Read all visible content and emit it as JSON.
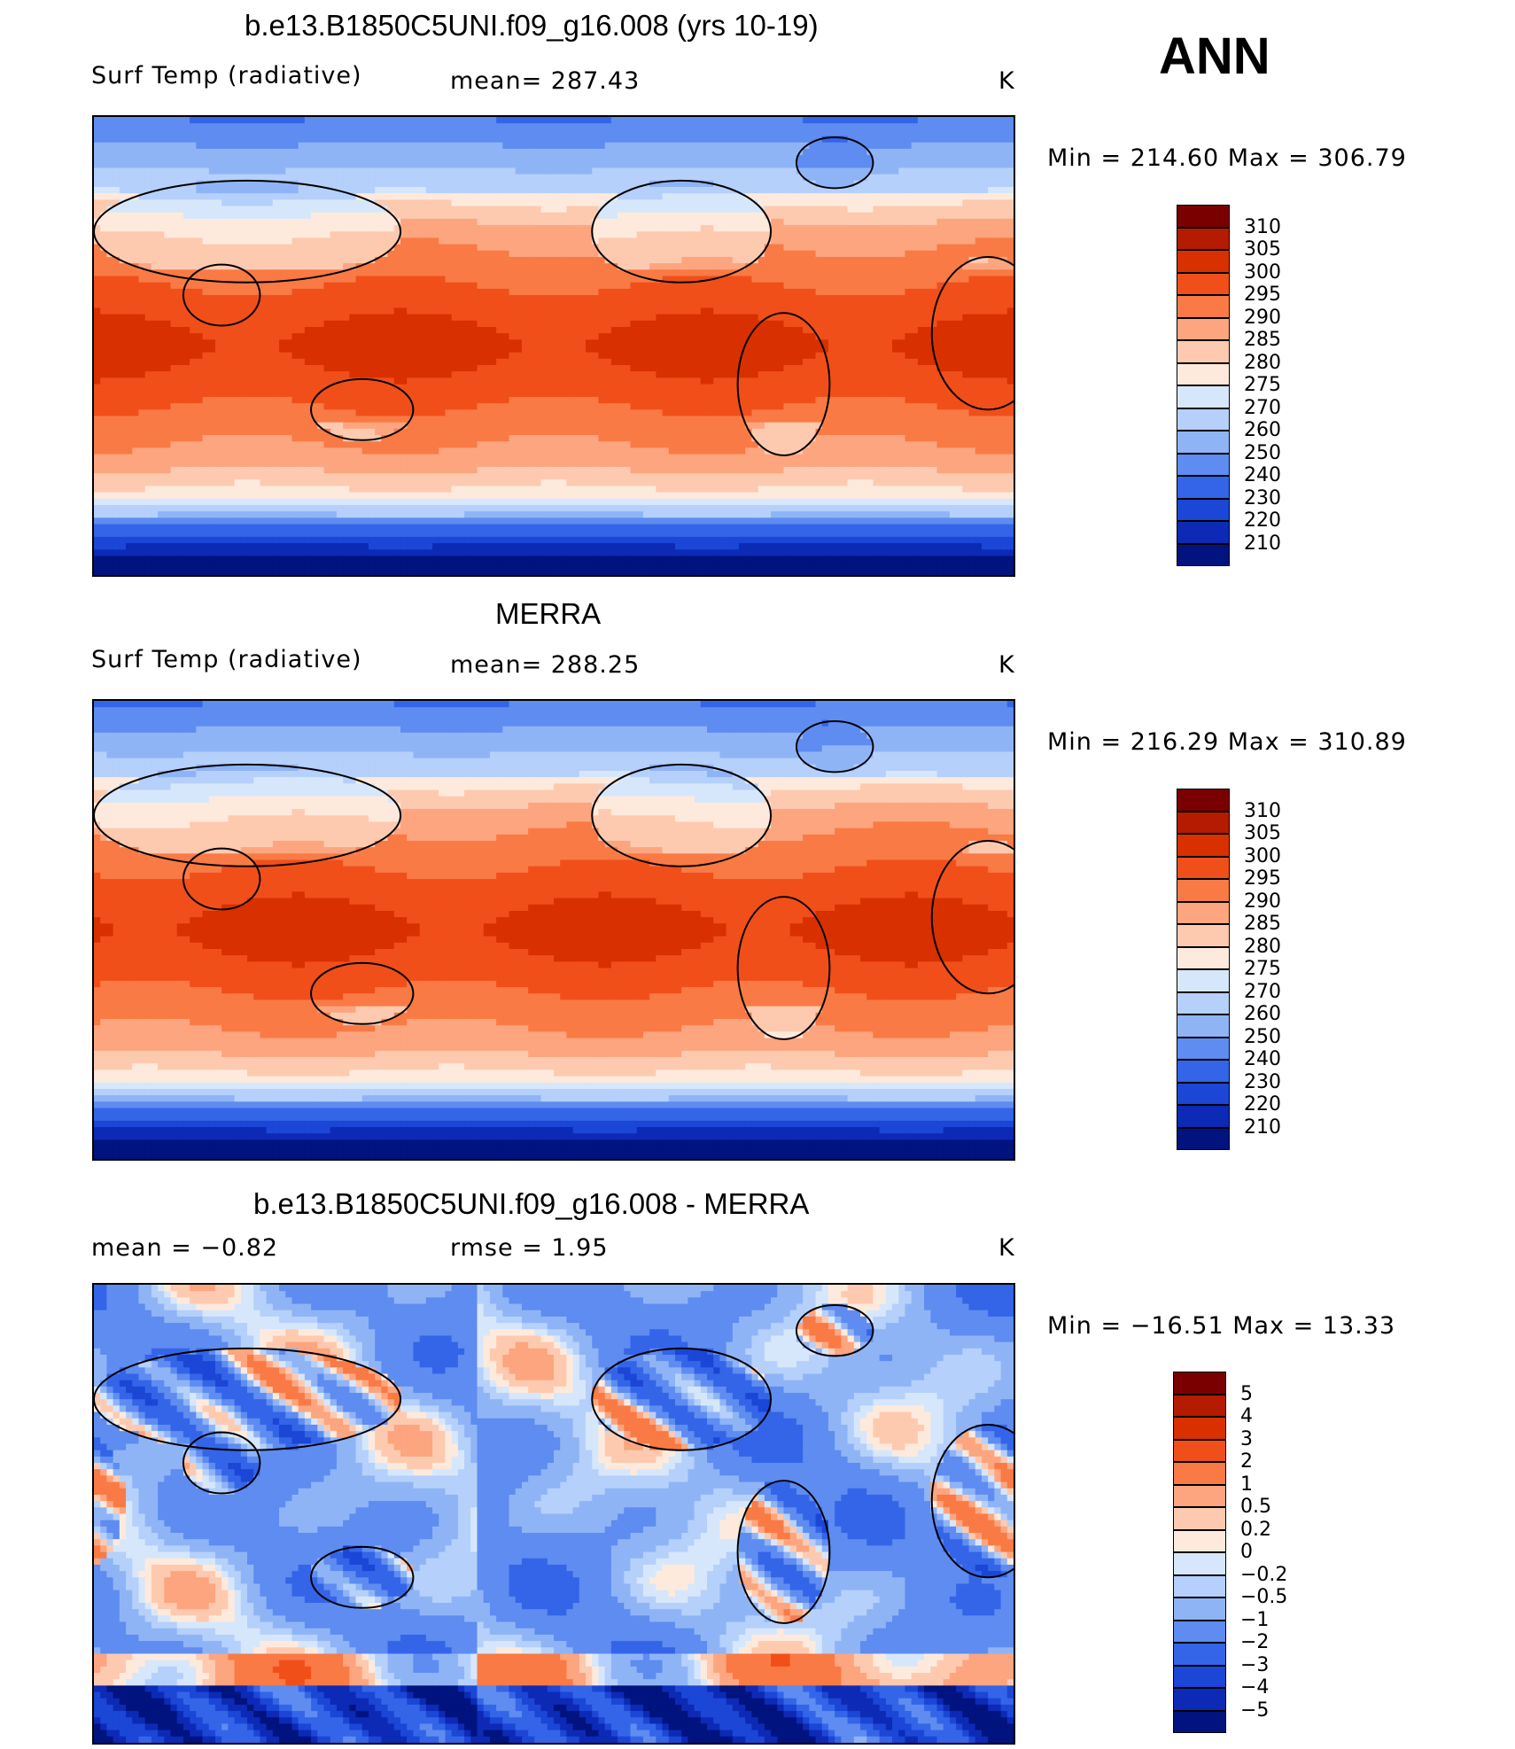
{
  "season": "ANN",
  "units": "K",
  "panels": [
    {
      "title": "b.e13.B1850C5UNI.f09_g16.008 (yrs 10-19)",
      "left_label": "Surf Temp (radiative)",
      "mid_label": "mean=  287.43",
      "minmax": "Min  =  214.60  Max  =  306.79",
      "palette": "abs"
    },
    {
      "title": "MERRA",
      "left_label": "Surf Temp (radiative)",
      "mid_label": "mean=  288.25",
      "minmax": "Min  =  216.29  Max  =  310.89",
      "palette": "abs"
    },
    {
      "title": "b.e13.B1850C5UNI.f09_g16.008 - MERRA",
      "left_label": "mean  =    −0.82",
      "mid_label": "rmse  =     1.95",
      "minmax": "Min  =  −16.51  Max  =    13.33",
      "palette": "diff"
    }
  ],
  "colorbars": {
    "abs": {
      "labels": [
        "310",
        "305",
        "300",
        "295",
        "290",
        "285",
        "280",
        "275",
        "270",
        "260",
        "250",
        "240",
        "230",
        "220",
        "210"
      ],
      "colors": [
        "#7a0000",
        "#b51b00",
        "#d93000",
        "#f14f1a",
        "#f97a45",
        "#fca57f",
        "#fdcab0",
        "#feeadc",
        "#d7e7fb",
        "#b5d0fa",
        "#8fb4f6",
        "#5e8cf0",
        "#3465e8",
        "#1b46d6",
        "#0c2ab5",
        "#00137f"
      ]
    },
    "diff": {
      "labels": [
        "5",
        "4",
        "3",
        "2",
        "1",
        "0.5",
        "0.2",
        "0",
        "−0.2",
        "−0.5",
        "−1",
        "−2",
        "−3",
        "−4",
        "−5"
      ],
      "colors": [
        "#7a0000",
        "#b51b00",
        "#d93000",
        "#f14f1a",
        "#f97a45",
        "#fca57f",
        "#fdcab0",
        "#feeadc",
        "#d7e7fb",
        "#b5d0fa",
        "#8fb4f6",
        "#5e8cf0",
        "#3465e8",
        "#1b46d6",
        "#0c2ab5",
        "#00137f"
      ]
    }
  },
  "chart_data": [
    {
      "type": "heatmap",
      "title": "b.e13.B1850C5UNI.f09_g16.008 (yrs 10-19)",
      "variable": "Surf Temp (radiative)",
      "units": "K",
      "mean": 287.43,
      "min": 214.6,
      "max": 306.79,
      "contour_levels": [
        210,
        220,
        230,
        240,
        250,
        260,
        270,
        275,
        280,
        285,
        290,
        295,
        300,
        305,
        310
      ]
    },
    {
      "type": "heatmap",
      "title": "MERRA",
      "variable": "Surf Temp (radiative)",
      "units": "K",
      "mean": 288.25,
      "min": 216.29,
      "max": 310.89,
      "contour_levels": [
        210,
        220,
        230,
        240,
        250,
        260,
        270,
        275,
        280,
        285,
        290,
        295,
        300,
        305,
        310
      ]
    },
    {
      "type": "heatmap",
      "title": "b.e13.B1850C5UNI.f09_g16.008 - MERRA",
      "units": "K",
      "mean": -0.82,
      "rmse": 1.95,
      "min": -16.51,
      "max": 13.33,
      "contour_levels": [
        -5,
        -4,
        -3,
        -2,
        -1,
        -0.5,
        -0.2,
        0,
        0.2,
        0.5,
        1,
        2,
        3,
        4,
        5
      ]
    }
  ]
}
